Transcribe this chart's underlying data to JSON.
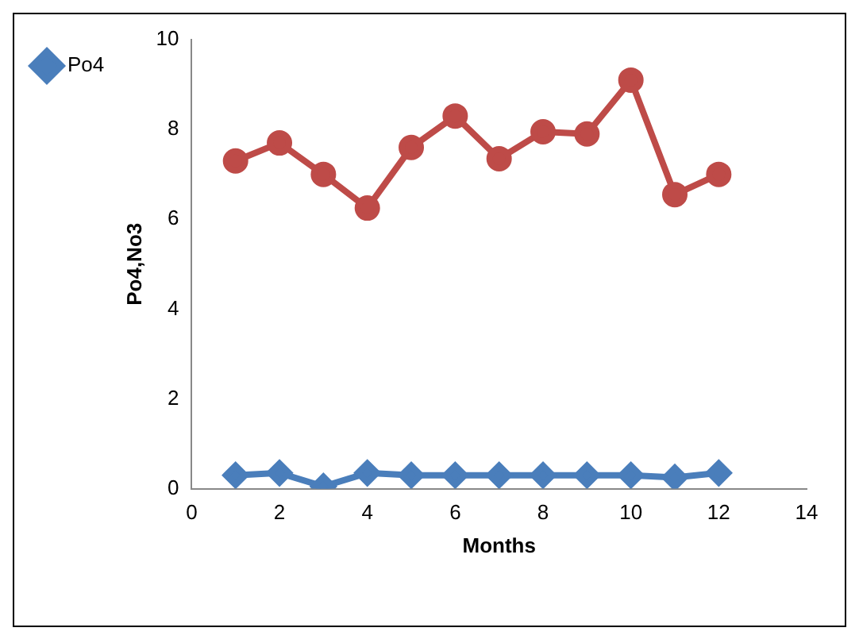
{
  "chart_data": {
    "type": "line",
    "xlabel": "Months",
    "ylabel": "Po4,No3",
    "x": [
      1,
      2,
      3,
      4,
      5,
      6,
      7,
      8,
      9,
      10,
      11,
      12
    ],
    "series": [
      {
        "name": "Po4",
        "color": "#4a7ebb",
        "marker": "diamond",
        "values": [
          0.3,
          0.35,
          0.05,
          0.35,
          0.3,
          0.3,
          0.3,
          0.3,
          0.3,
          0.3,
          0.25,
          0.35
        ]
      },
      {
        "color": "#be4b48",
        "marker": "circle",
        "values": [
          7.3,
          7.7,
          7.0,
          6.25,
          7.6,
          8.3,
          7.35,
          7.95,
          7.9,
          9.1,
          6.55,
          7.0
        ]
      }
    ],
    "xlim": [
      0,
      14
    ],
    "xticks": [
      0,
      2,
      4,
      6,
      8,
      10,
      12,
      14
    ],
    "ylim": [
      0,
      10
    ],
    "yticks": [
      0,
      2,
      4,
      6,
      8,
      10
    ],
    "grid": false,
    "legend": "left"
  }
}
